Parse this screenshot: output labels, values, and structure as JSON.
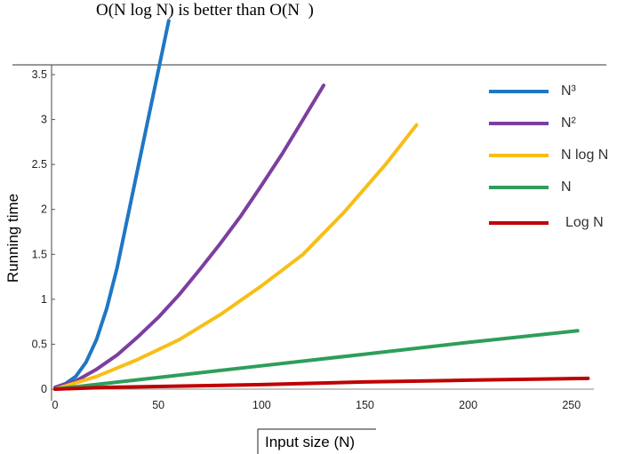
{
  "chart_data": {
    "type": "line",
    "title": "O(N log N) is better than O(N  )",
    "xlabel": "Input size (N)",
    "ylabel": "Running time",
    "xlim": [
      0,
      260
    ],
    "ylim": [
      0,
      3.5
    ],
    "x_ticks": [
      "0",
      "50",
      "100",
      "150",
      "200",
      "250"
    ],
    "y_ticks": [
      "0",
      "0.5",
      "1",
      "1.5",
      "2",
      "2.5",
      "3",
      "3.5"
    ],
    "legend_position": "top-right",
    "series": [
      {
        "name": "N³",
        "color": "#1f77c4",
        "x": [
          0,
          5,
          10,
          15,
          20,
          25,
          30,
          35,
          40,
          45,
          50,
          55
        ],
        "y": [
          0.02,
          0.06,
          0.14,
          0.3,
          0.55,
          0.9,
          1.35,
          1.9,
          2.45,
          3.0,
          3.55,
          4.1
        ]
      },
      {
        "name": "N²",
        "color": "#7b3fa0",
        "x": [
          0,
          10,
          20,
          30,
          40,
          50,
          60,
          70,
          80,
          90,
          100,
          110,
          120,
          130
        ],
        "y": [
          0.02,
          0.09,
          0.22,
          0.38,
          0.58,
          0.8,
          1.05,
          1.33,
          1.62,
          1.93,
          2.27,
          2.62,
          3.0,
          3.38
        ]
      },
      {
        "name": "N log N",
        "color": "#f7be16",
        "x": [
          0,
          20,
          40,
          60,
          80,
          100,
          120,
          140,
          160,
          175
        ],
        "y": [
          0.0,
          0.14,
          0.33,
          0.55,
          0.83,
          1.15,
          1.5,
          1.97,
          2.5,
          2.94
        ]
      },
      {
        "name": "N",
        "color": "#2e9e5b",
        "x": [
          0,
          50,
          100,
          150,
          200,
          253
        ],
        "y": [
          0.0,
          0.13,
          0.26,
          0.39,
          0.52,
          0.65
        ]
      },
      {
        "name": "Log N",
        "color": "#c00000",
        "x": [
          0,
          25,
          50,
          100,
          150,
          200,
          258
        ],
        "y": [
          0.0,
          0.02,
          0.03,
          0.05,
          0.08,
          0.1,
          0.12
        ]
      }
    ]
  }
}
